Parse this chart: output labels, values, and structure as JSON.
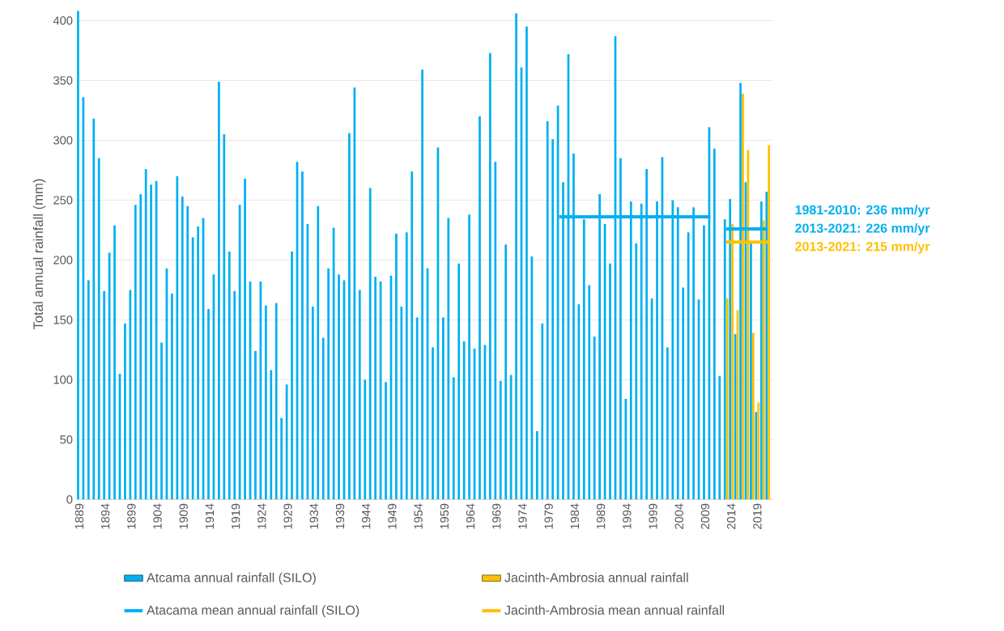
{
  "chart_data": {
    "type": "bar",
    "ylabel": "Total annual rainfall (mm)",
    "x": [
      1889,
      1890,
      1891,
      1892,
      1893,
      1894,
      1895,
      1896,
      1897,
      1898,
      1899,
      1900,
      1901,
      1902,
      1903,
      1904,
      1905,
      1906,
      1907,
      1908,
      1909,
      1910,
      1911,
      1912,
      1913,
      1914,
      1915,
      1916,
      1917,
      1918,
      1919,
      1920,
      1921,
      1922,
      1923,
      1924,
      1925,
      1926,
      1927,
      1928,
      1929,
      1930,
      1931,
      1932,
      1933,
      1934,
      1935,
      1936,
      1937,
      1938,
      1939,
      1940,
      1941,
      1942,
      1943,
      1944,
      1945,
      1946,
      1947,
      1948,
      1949,
      1950,
      1951,
      1952,
      1953,
      1954,
      1955,
      1956,
      1957,
      1958,
      1959,
      1960,
      1961,
      1962,
      1963,
      1964,
      1965,
      1966,
      1967,
      1968,
      1969,
      1970,
      1971,
      1972,
      1973,
      1974,
      1975,
      1976,
      1977,
      1978,
      1979,
      1980,
      1981,
      1982,
      1983,
      1984,
      1985,
      1986,
      1987,
      1988,
      1989,
      1990,
      1991,
      1992,
      1993,
      1994,
      1995,
      1996,
      1997,
      1998,
      1999,
      2000,
      2001,
      2002,
      2003,
      2004,
      2005,
      2006,
      2007,
      2008,
      2009,
      2010,
      2011,
      2012,
      2013,
      2014,
      2015,
      2016,
      2017,
      2018,
      2019,
      2020,
      2021
    ],
    "series": [
      {
        "name": "Atcama annual rainfall (SILO)",
        "color": "#00b0f0",
        "values": [
          408,
          336,
          183,
          318,
          285,
          174,
          206,
          229,
          105,
          147,
          175,
          246,
          255,
          276,
          263,
          266,
          131,
          193,
          172,
          270,
          253,
          245,
          219,
          228,
          235,
          159,
          188,
          349,
          305,
          207,
          174,
          246,
          268,
          182,
          124,
          182,
          162,
          108,
          164,
          68,
          96,
          207,
          282,
          274,
          230,
          161,
          245,
          135,
          193,
          227,
          188,
          183,
          306,
          344,
          175,
          100,
          260,
          186,
          182,
          98,
          187,
          222,
          161,
          223,
          274,
          152,
          359,
          193,
          127,
          294,
          152,
          235,
          102,
          197,
          132,
          238,
          126,
          320,
          129,
          373,
          282,
          99,
          213,
          104,
          406,
          361,
          395,
          203,
          57,
          147,
          316,
          301,
          329,
          265,
          372,
          289,
          163,
          234,
          179,
          136,
          255,
          230,
          197,
          387,
          285,
          84,
          249,
          214,
          247,
          276,
          168,
          249,
          286,
          127,
          250,
          244,
          177,
          223,
          244,
          167,
          229,
          311,
          293,
          103,
          234,
          251,
          138,
          348,
          265,
          214,
          73,
          249,
          257
        ]
      },
      {
        "name": "Jacinth-Ambrosia annual rainfall",
        "color": "#ffc000",
        "x": [
          2013,
          2014,
          2015,
          2016,
          2017,
          2018,
          2019,
          2020,
          2021
        ],
        "values": [
          168,
          230,
          158,
          339,
          292,
          139,
          81,
          233,
          296
        ]
      },
      {
        "name": "Atacama mean annual rainfall (SILO)",
        "type": "line",
        "color": "#00b0f0",
        "x": [
          1981,
          2010,
          2012,
          2013,
          2021
        ],
        "values": [
          236,
          236,
          null,
          226,
          226
        ]
      },
      {
        "name": "Jacinth-Ambrosia mean annual rainfall",
        "type": "line",
        "color": "#ffc000",
        "x": [
          2013,
          2021
        ],
        "values": [
          215,
          215
        ]
      }
    ],
    "xlim": [
      1888.5,
      2022
    ],
    "xticks": [
      1889,
      1894,
      1899,
      1904,
      1909,
      1914,
      1919,
      1924,
      1929,
      1934,
      1939,
      1944,
      1949,
      1954,
      1959,
      1964,
      1969,
      1974,
      1979,
      1984,
      1989,
      1994,
      1999,
      2004,
      2009,
      2014,
      2019
    ],
    "ylim": [
      0,
      410
    ],
    "yticks": [
      0,
      50,
      100,
      150,
      200,
      250,
      300,
      350,
      400
    ],
    "grid": "y",
    "legend": "bottom",
    "annotations": [
      "1981-2010: 236 mm/yr",
      "2013-2021: 226 mm/yr",
      "2013-2021: 215 mm/yr"
    ]
  }
}
